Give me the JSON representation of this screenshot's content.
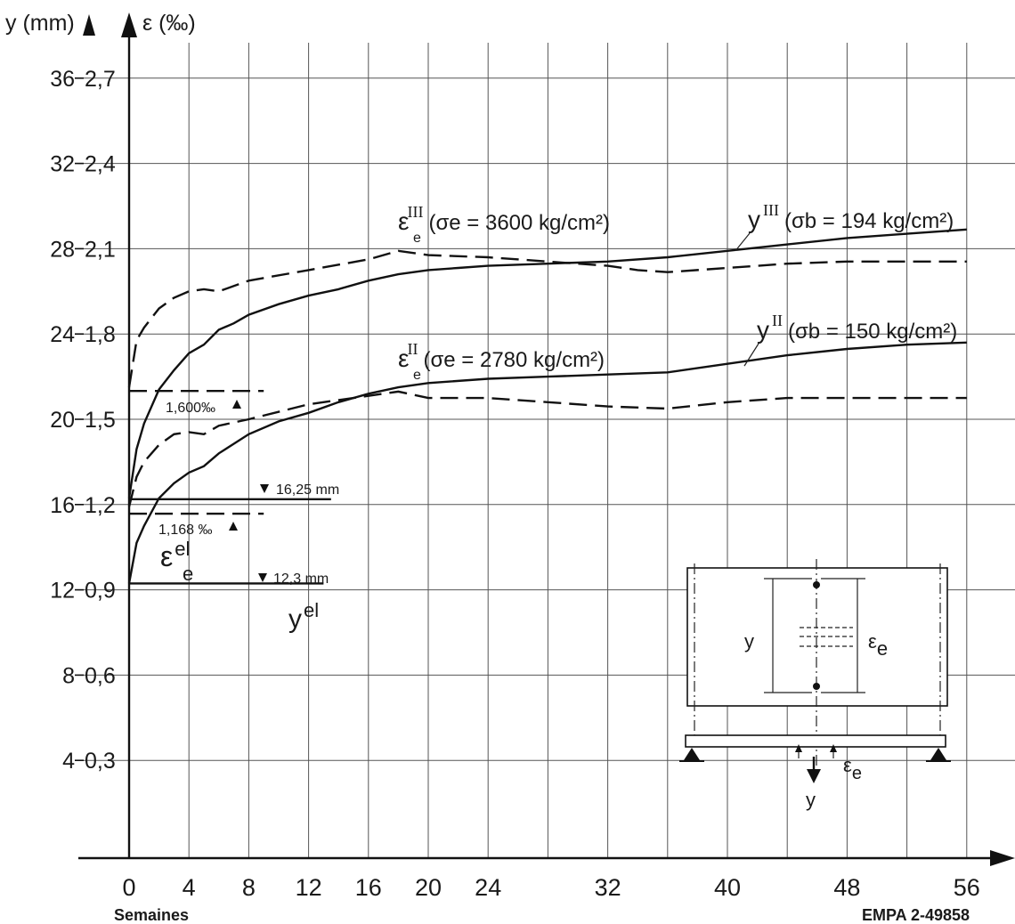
{
  "chart_data": {
    "type": "line",
    "title": "",
    "y_axis_label": "y (mm)",
    "y2_axis_label": "ε (‰)",
    "x_axis_label": "Semaines",
    "reference": "EMPA 2-49858",
    "x_ticks": [
      "0",
      "4",
      "8",
      "12",
      "16",
      "20",
      "24",
      "32",
      "40",
      "48",
      "56"
    ],
    "x_tick_values": [
      0,
      4,
      8,
      12,
      16,
      20,
      24,
      32,
      40,
      48,
      56
    ],
    "y_ticks": [
      "4",
      "8",
      "12",
      "16",
      "20",
      "24",
      "28",
      "32",
      "36"
    ],
    "y2_ticks": [
      "0,3",
      "0,6",
      "0,9",
      "1,2",
      "1,5",
      "1,8",
      "2,1",
      "2,4",
      "2,7"
    ],
    "ylim": [
      0,
      37.5
    ],
    "grid": true,
    "series": [
      {
        "name_main": "y",
        "name_sup": "III",
        "name_rest": "(σb = 194 kg/cm²)",
        "style": "solid",
        "x": [
          0,
          0.5,
          1,
          2,
          3,
          4,
          5,
          6,
          7,
          8,
          10,
          12,
          14,
          16,
          18,
          20,
          22,
          24,
          28,
          32,
          36,
          40,
          44,
          48,
          52,
          56
        ],
        "y": [
          16.3,
          18.6,
          19.8,
          21.4,
          22.3,
          23.1,
          23.5,
          24.2,
          24.5,
          24.9,
          25.4,
          25.8,
          26.1,
          26.5,
          26.8,
          27.0,
          27.1,
          27.2,
          27.3,
          27.4,
          27.6,
          27.9,
          28.2,
          28.5,
          28.7,
          28.9
        ]
      },
      {
        "name_main": "ε",
        "name_sub": "e",
        "name_sup": "III",
        "name_rest": "(σe = 3600 kg/cm²)",
        "style": "dashed",
        "x": [
          0,
          0.5,
          1,
          2,
          3,
          4,
          5,
          6,
          8,
          12,
          16,
          18,
          20,
          24,
          28,
          32,
          34,
          36,
          40,
          44,
          48,
          52,
          56
        ],
        "y": [
          21.5,
          23.7,
          24.3,
          25.2,
          25.7,
          26.0,
          26.1,
          26.0,
          26.5,
          27.0,
          27.5,
          27.9,
          27.7,
          27.6,
          27.4,
          27.2,
          27.0,
          26.9,
          27.1,
          27.3,
          27.4,
          27.4,
          27.4
        ]
      },
      {
        "name_main": "y",
        "name_sup": "II",
        "name_rest": "(σb = 150 kg/cm²)",
        "style": "solid",
        "x": [
          0,
          0.5,
          1,
          2,
          3,
          4,
          5,
          6,
          8,
          10,
          12,
          14,
          16,
          18,
          20,
          24,
          28,
          32,
          36,
          40,
          44,
          48,
          52,
          56
        ],
        "y": [
          12.3,
          14.2,
          15.0,
          16.3,
          17.0,
          17.5,
          17.8,
          18.4,
          19.3,
          19.9,
          20.3,
          20.8,
          21.2,
          21.5,
          21.7,
          21.9,
          22.0,
          22.1,
          22.2,
          22.6,
          23.0,
          23.3,
          23.5,
          23.6
        ]
      },
      {
        "name_main": "ε",
        "name_sub": "e",
        "name_sup": "II",
        "name_rest": "(σe = 2780 kg/cm²)",
        "style": "dashed",
        "x": [
          0,
          0.5,
          1,
          2,
          3,
          4,
          5,
          6,
          8,
          12,
          16,
          18,
          20,
          24,
          28,
          32,
          36,
          40,
          44,
          48,
          52,
          56
        ],
        "y": [
          15.9,
          17.3,
          18.0,
          18.8,
          19.3,
          19.4,
          19.3,
          19.7,
          20.0,
          20.7,
          21.1,
          21.3,
          21.0,
          21.0,
          20.8,
          20.6,
          20.5,
          20.8,
          21.0,
          21.0,
          21.0,
          21.0
        ]
      }
    ],
    "reference_lines": [
      {
        "label": "1,600‰",
        "y_mm": 21.33,
        "x_end": 9,
        "style": "dashed"
      },
      {
        "label": "16,25 mm",
        "y_mm": 16.25,
        "x_end": 13.5,
        "style": "solid"
      },
      {
        "label": "1,168 ‰",
        "y_mm": 15.57,
        "x_end": 9,
        "style": "dashed"
      },
      {
        "label": "12,3 mm",
        "y_mm": 12.3,
        "x_end": 13,
        "style": "solid"
      }
    ],
    "elastic_labels": {
      "eps": "ε",
      "eps_sub": "e",
      "eps_sup": "el",
      "y": "y",
      "y_sup": "el"
    },
    "inset": {
      "y_label": "y",
      "eps_label": "ε",
      "eps_sub": "e"
    }
  }
}
